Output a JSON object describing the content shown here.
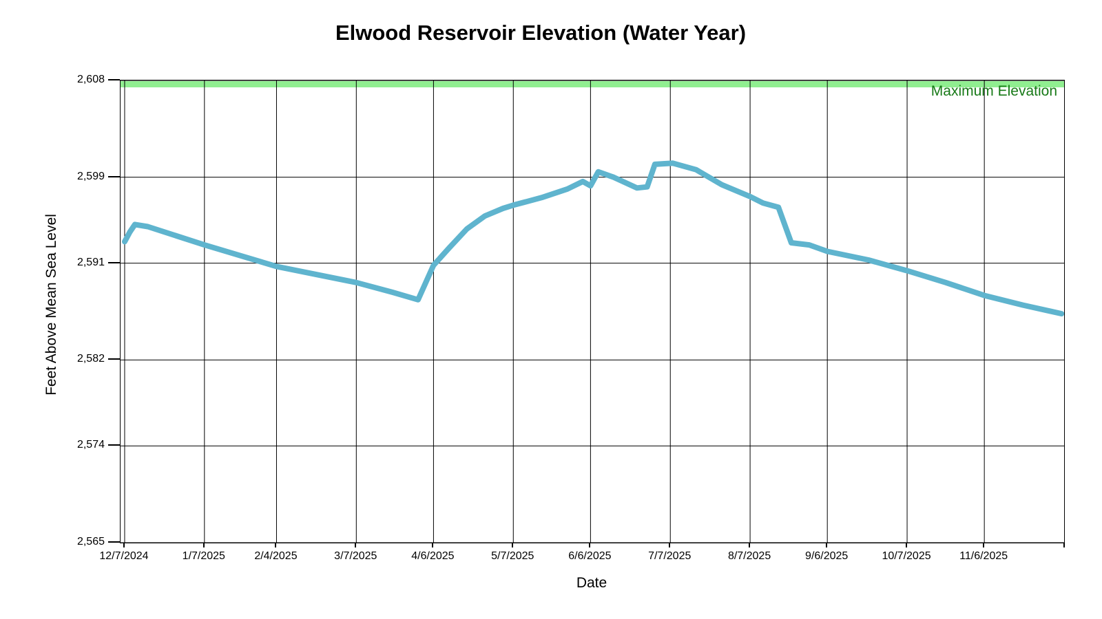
{
  "chart_data": {
    "type": "line",
    "title": "Elwood Reservoir Elevation (Water Year)",
    "xlabel": "Date",
    "ylabel": "Feet Above Mean Sea Level",
    "ylim": [
      2565,
      2608
    ],
    "grid": true,
    "background_color": "#FFFFFF",
    "grid_color": "#000000",
    "y_ticks": [
      {
        "value": 2565,
        "label": "2,565"
      },
      {
        "value": 2574,
        "label": "2,574"
      },
      {
        "value": 2582,
        "label": "2,582"
      },
      {
        "value": 2591,
        "label": "2,591"
      },
      {
        "value": 2599,
        "label": "2,599"
      },
      {
        "value": 2608,
        "label": "2,608"
      }
    ],
    "x_ticks": [
      {
        "day": 0,
        "label": "12/7/2024"
      },
      {
        "day": 31,
        "label": "1/7/2025"
      },
      {
        "day": 59,
        "label": "2/4/2025"
      },
      {
        "day": 90,
        "label": "3/7/2025"
      },
      {
        "day": 120,
        "label": "4/6/2025"
      },
      {
        "day": 151,
        "label": "5/7/2025"
      },
      {
        "day": 181,
        "label": "6/6/2025"
      },
      {
        "day": 212,
        "label": "7/7/2025"
      },
      {
        "day": 243,
        "label": "8/7/2025"
      },
      {
        "day": 273,
        "label": "9/6/2025"
      },
      {
        "day": 304,
        "label": "10/7/2025"
      },
      {
        "day": 334,
        "label": "11/6/2025"
      }
    ],
    "x_domain_days": [
      -1.6,
      365
    ],
    "series": [
      {
        "name": "reservoir-elevation",
        "color": "#5FB4CE",
        "line_width": 8,
        "points": [
          {
            "date": "12/7/2024",
            "day": 0,
            "value": 2593.0
          },
          {
            "date": "12/9/2024",
            "day": 2,
            "value": 2593.9
          },
          {
            "date": "12/11/2024",
            "day": 4,
            "value": 2594.6
          },
          {
            "date": "12/16/2024",
            "day": 9,
            "value": 2594.4
          },
          {
            "date": "1/7/2025",
            "day": 31,
            "value": 2592.7
          },
          {
            "date": "2/4/2025",
            "day": 59,
            "value": 2590.7
          },
          {
            "date": "3/7/2025",
            "day": 90,
            "value": 2589.2
          },
          {
            "date": "3/21/2025",
            "day": 104,
            "value": 2588.3
          },
          {
            "date": "3/31/2025",
            "day": 114,
            "value": 2587.6
          },
          {
            "date": "4/6/2025",
            "day": 120,
            "value": 2590.8
          },
          {
            "date": "4/12/2025",
            "day": 126,
            "value": 2592.4
          },
          {
            "date": "4/19/2025",
            "day": 133,
            "value": 2594.2
          },
          {
            "date": "4/26/2025",
            "day": 140,
            "value": 2595.4
          },
          {
            "date": "5/3/2025",
            "day": 147,
            "value": 2596.1
          },
          {
            "date": "5/7/2025",
            "day": 151,
            "value": 2596.4
          },
          {
            "date": "5/18/2025",
            "day": 162,
            "value": 2597.1
          },
          {
            "date": "5/28/2025",
            "day": 172,
            "value": 2597.9
          },
          {
            "date": "6/3/2025",
            "day": 178,
            "value": 2598.6
          },
          {
            "date": "6/6/2025",
            "day": 181,
            "value": 2598.2
          },
          {
            "date": "6/9/2025",
            "day": 184,
            "value": 2599.5
          },
          {
            "date": "6/15/2025",
            "day": 190,
            "value": 2599.0
          },
          {
            "date": "6/24/2025",
            "day": 199,
            "value": 2598.0
          },
          {
            "date": "6/28/2025",
            "day": 203,
            "value": 2598.1
          },
          {
            "date": "7/1/2025",
            "day": 206,
            "value": 2600.2
          },
          {
            "date": "7/8/2025",
            "day": 213,
            "value": 2600.3
          },
          {
            "date": "7/17/2025",
            "day": 222,
            "value": 2599.7
          },
          {
            "date": "7/27/2025",
            "day": 232,
            "value": 2598.3
          },
          {
            "date": "8/7/2025",
            "day": 243,
            "value": 2597.2
          },
          {
            "date": "8/12/2025",
            "day": 248,
            "value": 2596.6
          },
          {
            "date": "8/18/2025",
            "day": 254,
            "value": 2596.2
          },
          {
            "date": "8/23/2025",
            "day": 259,
            "value": 2592.9
          },
          {
            "date": "8/30/2025",
            "day": 266,
            "value": 2592.7
          },
          {
            "date": "9/6/2025",
            "day": 273,
            "value": 2592.1
          },
          {
            "date": "9/22/2025",
            "day": 289,
            "value": 2591.3
          },
          {
            "date": "10/7/2025",
            "day": 304,
            "value": 2590.3
          },
          {
            "date": "10/22/2025",
            "day": 319,
            "value": 2589.2
          },
          {
            "date": "11/6/2025",
            "day": 334,
            "value": 2588.0
          },
          {
            "date": "11/21/2025",
            "day": 349,
            "value": 2587.1
          },
          {
            "date": "12/6/2025",
            "day": 364,
            "value": 2586.3
          }
        ]
      }
    ],
    "annotations": [
      {
        "type": "max-elevation-band",
        "label": "Maximum Elevation",
        "value": 2608,
        "band_color": "#90EE90",
        "label_color": "#177917"
      }
    ]
  }
}
